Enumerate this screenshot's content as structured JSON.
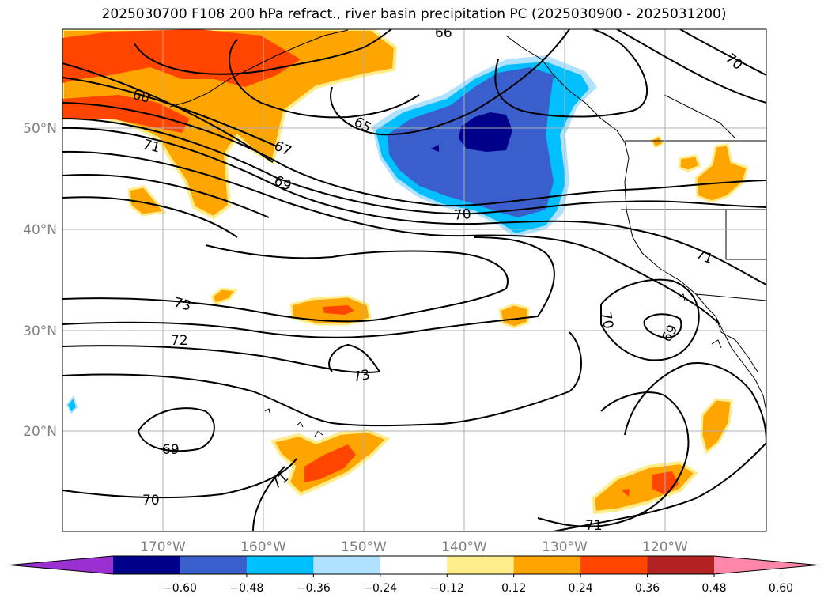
{
  "title": "2025030700 F108 200 hPa refract., river basin precipitation PC (2025030900 - 2025031200)",
  "lat_labels": [
    "50°N",
    "40°N",
    "30°N",
    "20°N"
  ],
  "lon_labels": [
    "170°W",
    "160°W",
    "150°W",
    "140°W",
    "130°W",
    "120°W"
  ],
  "colorbar": {
    "ticks": [
      "−0.60",
      "−0.48",
      "−0.36",
      "−0.24",
      "−0.12",
      "0.12",
      "0.24",
      "0.36",
      "0.48",
      "0.60"
    ],
    "colors": [
      "#9b30d0",
      "#00008b",
      "#3a5fcd",
      "#00bfff",
      "#b0e2ff",
      "#ffffff",
      "#ffec8b",
      "#ffa500",
      "#ff4500",
      "#b22222",
      "#ff88aa"
    ]
  },
  "contour_labels": [
    "66",
    "70",
    "68",
    "65",
    "67",
    "71",
    "69",
    "70",
    "71",
    "73",
    "72",
    "73",
    "70",
    "69",
    "69",
    "70",
    "71",
    "71"
  ]
}
